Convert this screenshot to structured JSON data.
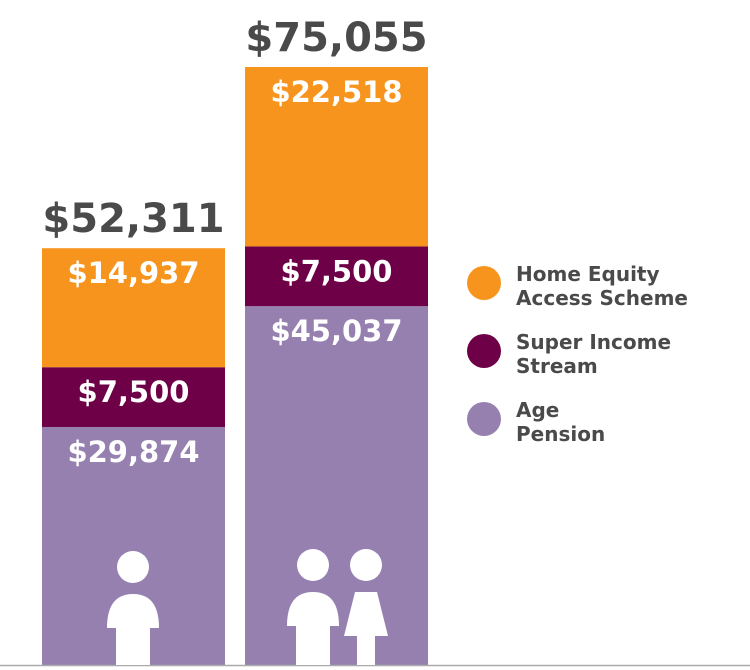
{
  "chart_data": {
    "type": "stacked-bar",
    "categories": [
      null,
      null
    ],
    "series": [
      {
        "name": "Age Pension",
        "color": "#9580b0",
        "values": [
          29874,
          45037
        ],
        "value_labels": [
          "$29,874",
          "$45,037"
        ]
      },
      {
        "name": "Super Income Stream",
        "color": "#6d0046",
        "values": [
          7500,
          7500
        ],
        "value_labels": [
          "$7,500",
          "$7,500"
        ]
      },
      {
        "name": "Home Equity Access Scheme",
        "color": "#f7941d",
        "values": [
          14937,
          22518
        ],
        "value_labels": [
          "$14,937",
          "$22,518"
        ]
      }
    ],
    "totals": [
      52311,
      75055
    ],
    "total_labels": [
      "$52,311",
      "$75,055"
    ],
    "legend": "right"
  }
}
